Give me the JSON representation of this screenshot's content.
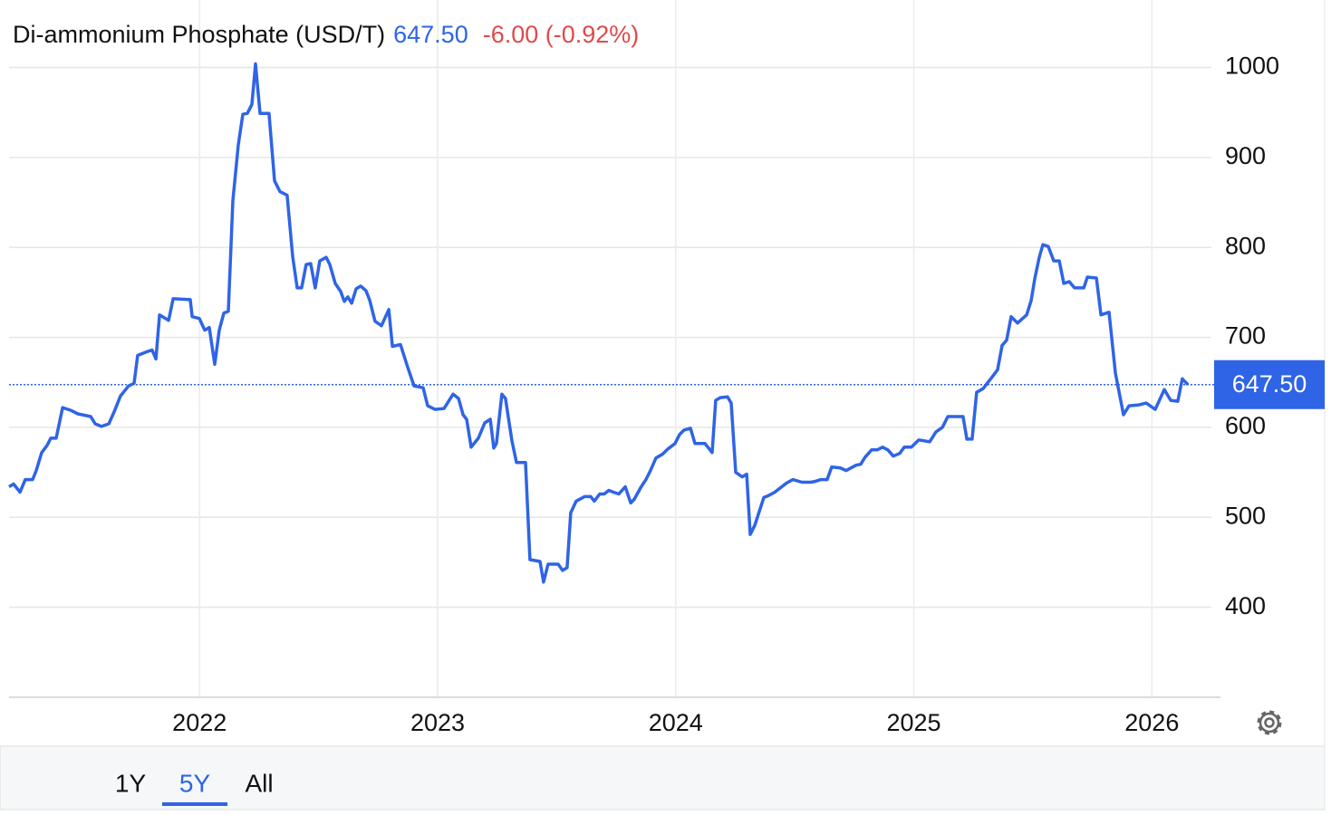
{
  "chart_data": {
    "type": "line",
    "title": "Di-ammonium Phosphate (USD/T)",
    "price_label": "647.50",
    "change_label": "-6.00 (-0.92%)",
    "color": "#2f64e6",
    "change_color": "#e04a4a",
    "xlim": [
      2021.2,
      2026.25
    ],
    "xticks": [
      2022,
      2023,
      2024,
      2025,
      2026
    ],
    "ylim": [
      300,
      1075
    ],
    "yticks": [
      400,
      500,
      600,
      700,
      800,
      900,
      1000
    ],
    "grid": true,
    "x": [
      2021.2,
      2021.219,
      2021.246,
      2021.268,
      2021.299,
      2021.314,
      2021.337,
      2021.36,
      2021.375,
      2021.398,
      2021.425,
      2021.459,
      2021.489,
      2021.543,
      2021.562,
      2021.588,
      2021.619,
      2021.641,
      2021.668,
      2021.702,
      2021.725,
      2021.74,
      2021.778,
      2021.801,
      2021.817,
      2021.832,
      2021.87,
      2021.889,
      2021.961,
      2021.969,
      2021.999,
      2022.022,
      2022.041,
      2022.064,
      2022.083,
      2022.102,
      2022.121,
      2022.14,
      2022.163,
      2022.182,
      2022.201,
      2022.22,
      2022.235,
      2022.254,
      2022.292,
      2022.315,
      2022.338,
      2022.368,
      2022.391,
      2022.41,
      2022.429,
      2022.448,
      2022.467,
      2022.486,
      2022.505,
      2022.532,
      2022.547,
      2022.57,
      2022.593,
      2022.608,
      2022.623,
      2022.639,
      2022.658,
      2022.677,
      2022.699,
      2022.715,
      2022.737,
      2022.764,
      2022.795,
      2022.81,
      2022.844,
      2022.874,
      2022.901,
      2022.939,
      2022.958,
      2022.989,
      2023.027,
      2023.065,
      2023.088,
      2023.107,
      2023.122,
      2023.141,
      2023.171,
      2023.198,
      2023.221,
      2023.236,
      2023.247,
      2023.27,
      2023.285,
      2023.312,
      2023.331,
      2023.369,
      2023.388,
      2023.43,
      2023.445,
      2023.464,
      2023.506,
      2023.525,
      2023.544,
      2023.559,
      2023.582,
      2023.617,
      2023.643,
      2023.658,
      2023.681,
      2023.7,
      2023.719,
      2023.738,
      2023.761,
      2023.788,
      2023.811,
      2023.826,
      2023.853,
      2023.875,
      2023.894,
      2023.917,
      2023.944,
      2023.967,
      2023.997,
      2024.016,
      2024.035,
      2024.062,
      2024.081,
      2024.123,
      2024.153,
      2024.168,
      2024.187,
      2024.218,
      2024.233,
      2024.252,
      2024.279,
      2024.298,
      2024.313,
      2024.332,
      2024.37,
      2024.389,
      2024.416,
      2024.465,
      2024.492,
      2024.53,
      2024.568,
      2024.587,
      2024.61,
      2024.636,
      2024.655,
      2024.69,
      2024.716,
      2024.758,
      2024.777,
      2024.796,
      2024.823,
      2024.846,
      2024.869,
      2024.891,
      2024.914,
      2024.941,
      2024.96,
      2024.99,
      2025.021,
      2025.067,
      2025.093,
      2025.12,
      2025.143,
      2025.207,
      2025.223,
      2025.245,
      2025.264,
      2025.291,
      2025.329,
      2025.352,
      2025.371,
      2025.39,
      2025.409,
      2025.436,
      2025.474,
      2025.493,
      2025.508,
      2025.527,
      2025.542,
      2025.565,
      2025.588,
      2025.611,
      2025.63,
      2025.653,
      2025.675,
      2025.714,
      2025.729,
      2025.767,
      2025.786,
      2025.82,
      2025.847,
      2025.881,
      2025.904,
      2025.946,
      2025.976,
      2026.014,
      2026.052,
      2026.079,
      2026.109,
      2026.128,
      2026.151
    ],
    "values": [
      534,
      537,
      528,
      542,
      542,
      552,
      572,
      580,
      588,
      588,
      622,
      619,
      615,
      612,
      604,
      601,
      604,
      617,
      635,
      646,
      649,
      680,
      684,
      686,
      676,
      725,
      719,
      743,
      742,
      723,
      721,
      708,
      711,
      670,
      708,
      727,
      729,
      852,
      914,
      948,
      949,
      959,
      1004,
      949,
      949,
      874,
      862,
      858,
      790,
      755,
      755,
      781,
      782,
      755,
      785,
      789,
      781,
      760,
      751,
      740,
      745,
      738,
      754,
      757,
      752,
      741,
      718,
      713,
      731,
      690,
      692,
      667,
      646,
      644,
      624,
      620,
      621,
      637,
      632,
      614,
      609,
      578,
      588,
      605,
      609,
      577,
      582,
      637,
      632,
      585,
      561,
      561,
      453,
      451,
      428,
      448,
      448,
      441,
      444,
      505,
      518,
      523,
      523,
      518,
      526,
      526,
      530,
      528,
      526,
      534,
      516,
      520,
      533,
      542,
      552,
      566,
      570,
      576,
      582,
      592,
      597,
      599,
      582,
      582,
      572,
      630,
      633,
      634,
      627,
      550,
      545,
      548,
      481,
      491,
      522,
      524,
      528,
      538,
      542,
      539,
      539,
      540,
      542,
      542,
      556,
      555,
      552,
      558,
      559,
      567,
      575,
      575,
      578,
      575,
      568,
      571,
      578,
      578,
      586,
      584,
      595,
      600,
      612,
      612,
      587,
      587,
      639,
      643,
      656,
      664,
      691,
      697,
      723,
      716,
      725,
      741,
      765,
      789,
      803,
      801,
      785,
      785,
      760,
      762,
      755,
      755,
      767,
      766,
      725,
      728,
      660,
      614,
      624,
      625,
      627,
      620,
      642,
      630,
      629,
      654,
      647.5
    ],
    "ranges": [
      "1Y",
      "5Y",
      "All"
    ],
    "selected_range": 1
  }
}
